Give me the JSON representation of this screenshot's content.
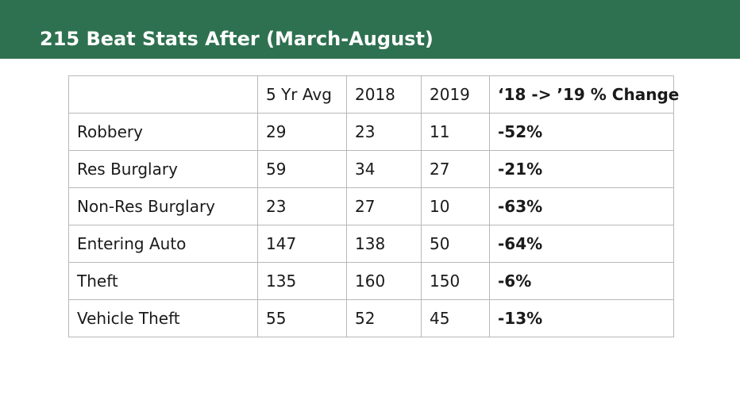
{
  "header": {
    "title": "215 Beat Stats After (March-August)",
    "background_color": "#2e7150"
  },
  "table": {
    "columns": [
      "",
      "5 Yr Avg",
      "2018",
      "2019",
      "‘18 -> ’19 % Change"
    ],
    "rows": [
      {
        "label": "Robbery",
        "avg5": "29",
        "y2018": "23",
        "y2019": "11",
        "change": "-52%"
      },
      {
        "label": "Res Burglary",
        "avg5": "59",
        "y2018": "34",
        "y2019": "27",
        "change": "-21%"
      },
      {
        "label": "Non-Res Burglary",
        "avg5": "23",
        "y2018": "27",
        "y2019": "10",
        "change": "-63%"
      },
      {
        "label": "Entering Auto",
        "avg5": "147",
        "y2018": "138",
        "y2019": "50",
        "change": "-64%"
      },
      {
        "label": "Theft",
        "avg5": "135",
        "y2018": "160",
        "y2019": "150",
        "change": "-6%"
      },
      {
        "label": "Vehicle Theft",
        "avg5": "55",
        "y2018": "52",
        "y2019": "45",
        "change": "-13%"
      }
    ]
  }
}
